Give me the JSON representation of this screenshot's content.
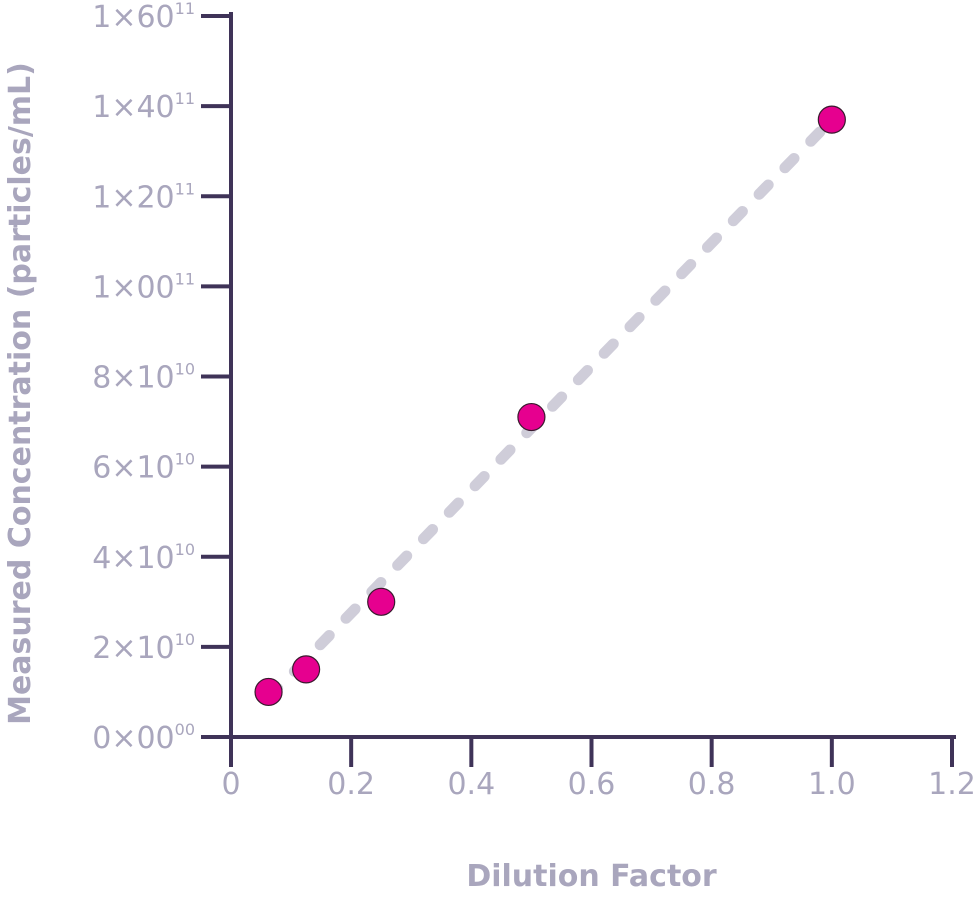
{
  "chart_data": {
    "type": "scatter",
    "xlabel": "Dilution Factor",
    "ylabel": "Measured Concentration (particles/mL)",
    "xlim": [
      0,
      1.2
    ],
    "ylim": [
      0,
      160000000000
    ],
    "x_ticks": [
      {
        "value": 0,
        "label": "0"
      },
      {
        "value": 0.2,
        "label": "0.2"
      },
      {
        "value": 0.4,
        "label": "0.4"
      },
      {
        "value": 0.6,
        "label": "0.6"
      },
      {
        "value": 0.8,
        "label": "0.8"
      },
      {
        "value": 1.0,
        "label": "1.0"
      },
      {
        "value": 1.2,
        "label": "1.2"
      }
    ],
    "y_ticks": [
      {
        "value": 0,
        "mantissa": "0×00",
        "exponent": "00"
      },
      {
        "value": 20000000000,
        "mantissa": "2×10",
        "exponent": "10"
      },
      {
        "value": 40000000000,
        "mantissa": "4×10",
        "exponent": "10"
      },
      {
        "value": 60000000000,
        "mantissa": "6×10",
        "exponent": "10"
      },
      {
        "value": 80000000000,
        "mantissa": "8×10",
        "exponent": "10"
      },
      {
        "value": 100000000000,
        "mantissa": "1×00",
        "exponent": "11"
      },
      {
        "value": 120000000000,
        "mantissa": "1×20",
        "exponent": "11"
      },
      {
        "value": 140000000000,
        "mantissa": "1×40",
        "exponent": "11"
      },
      {
        "value": 160000000000,
        "mantissa": "1×60",
        "exponent": "11"
      }
    ],
    "series": [
      {
        "x": [
          0.0625,
          0.125,
          0.25,
          0.5,
          1.0
        ],
        "y": [
          10000000000,
          15000000000,
          30000000000,
          71000000000,
          137000000000
        ]
      }
    ],
    "trendline": {
      "x": [
        0.0625,
        1.0
      ],
      "y": [
        8700000000,
        137000000000
      ],
      "style": "dashed"
    },
    "grid": false,
    "legend": "none",
    "colors": {
      "axis": "#3f3358",
      "tick_text": "#a9a6bd",
      "point_fill": "#e6008f",
      "point_stroke": "#3a1a2e",
      "trendline": "#cfcdd9"
    }
  }
}
